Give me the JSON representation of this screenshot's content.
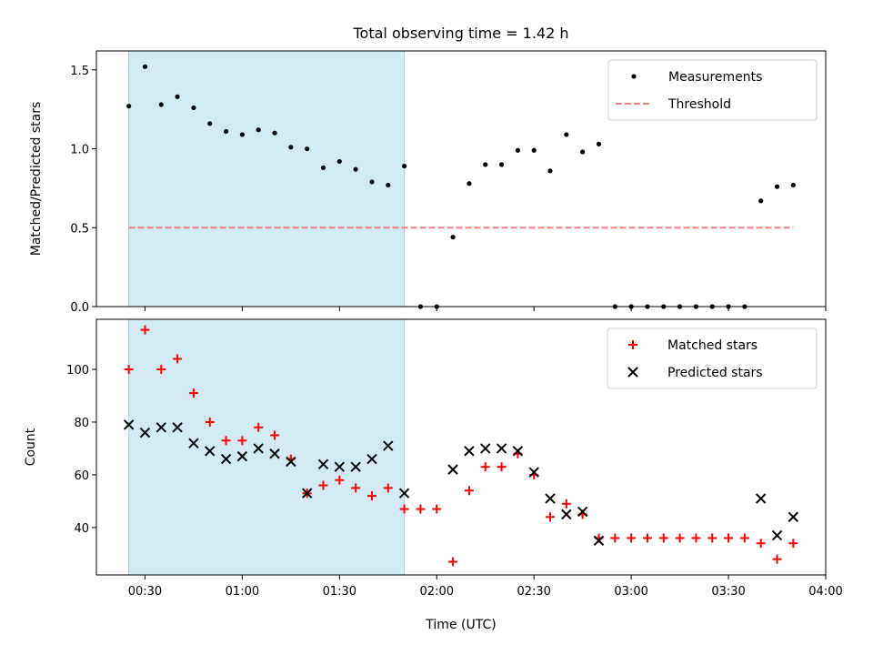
{
  "chart_data": [
    {
      "type": "scatter",
      "title": "Total observing time = 1.42 h",
      "xlabel": "",
      "ylabel": "Matched/Predicted stars",
      "ylim": [
        0,
        1.62
      ],
      "yticks": [
        "0.0",
        "0.5",
        "1.0",
        "1.5"
      ],
      "shaded_region": {
        "x_start": "00:25",
        "x_end": "01:50",
        "color": "#add8e6"
      },
      "legend_position": "top-right",
      "series": [
        {
          "name": "Measurements",
          "marker": "dot",
          "color": "#000000",
          "x": [
            "00:25",
            "00:30",
            "00:35",
            "00:40",
            "00:45",
            "00:50",
            "00:55",
            "01:00",
            "01:05",
            "01:10",
            "01:15",
            "01:20",
            "01:25",
            "01:30",
            "01:35",
            "01:40",
            "01:45",
            "01:50",
            "01:55",
            "02:00",
            "02:05",
            "02:10",
            "02:15",
            "02:20",
            "02:25",
            "02:30",
            "02:35",
            "02:40",
            "02:45",
            "02:50",
            "02:55",
            "03:00",
            "03:05",
            "03:10",
            "03:15",
            "03:20",
            "03:25",
            "03:30",
            "03:35",
            "03:40",
            "03:45",
            "03:50"
          ],
          "y": [
            1.27,
            1.52,
            1.28,
            1.33,
            1.26,
            1.16,
            1.11,
            1.09,
            1.12,
            1.1,
            1.01,
            1.0,
            0.88,
            0.92,
            0.87,
            0.79,
            0.77,
            0.89,
            0.0,
            0.0,
            0.44,
            0.78,
            0.9,
            0.9,
            0.99,
            0.99,
            0.86,
            1.09,
            0.98,
            1.03,
            0.0,
            0.0,
            0.0,
            0.0,
            0.0,
            0.0,
            0.0,
            0.0,
            0.0,
            0.67,
            0.76,
            0.77
          ]
        },
        {
          "name": "Threshold",
          "line": "dashed",
          "color": "#f08080",
          "x": [
            "00:25",
            "03:50"
          ],
          "y": [
            0.5,
            0.5
          ]
        }
      ]
    },
    {
      "type": "scatter",
      "title": "",
      "xlabel": "Time (UTC)",
      "ylabel": "Count",
      "ylim": [
        22,
        119
      ],
      "yticks": [
        "40",
        "60",
        "80",
        "100"
      ],
      "xticks": [
        "00:30",
        "01:00",
        "01:30",
        "02:00",
        "02:30",
        "03:00",
        "03:30",
        "04:00"
      ],
      "xlim": [
        "00:15",
        "04:00"
      ],
      "shaded_region": {
        "x_start": "00:25",
        "x_end": "01:50",
        "color": "#add8e6"
      },
      "legend_position": "top-right",
      "series": [
        {
          "name": "Matched stars",
          "marker": "plus",
          "color": "#ff0000",
          "x": [
            "00:25",
            "00:30",
            "00:35",
            "00:40",
            "00:45",
            "00:50",
            "00:55",
            "01:00",
            "01:05",
            "01:10",
            "01:15",
            "01:20",
            "01:25",
            "01:30",
            "01:35",
            "01:40",
            "01:45",
            "01:50",
            "01:55",
            "02:00",
            "02:05",
            "02:10",
            "02:15",
            "02:20",
            "02:25",
            "02:30",
            "02:35",
            "02:40",
            "02:45",
            "02:50",
            "02:55",
            "03:00",
            "03:05",
            "03:10",
            "03:15",
            "03:20",
            "03:25",
            "03:30",
            "03:35",
            "03:40",
            "03:45",
            "03:50"
          ],
          "y": [
            100,
            115,
            100,
            104,
            91,
            80,
            73,
            73,
            78,
            75,
            66,
            53,
            56,
            58,
            55,
            52,
            55,
            47,
            47,
            47,
            27,
            54,
            63,
            63,
            68,
            60,
            44,
            49,
            45,
            36,
            36,
            36,
            36,
            36,
            36,
            36,
            36,
            36,
            36,
            34,
            28,
            34
          ]
        },
        {
          "name": "Predicted stars",
          "marker": "x",
          "color": "#000000",
          "x": [
            "00:25",
            "00:30",
            "00:35",
            "00:40",
            "00:45",
            "00:50",
            "00:55",
            "01:00",
            "01:05",
            "01:10",
            "01:15",
            "01:20",
            "01:25",
            "01:30",
            "01:35",
            "01:40",
            "01:45",
            "01:50",
            "02:05",
            "02:10",
            "02:15",
            "02:20",
            "02:25",
            "02:30",
            "02:35",
            "02:40",
            "02:45",
            "02:50",
            "03:40",
            "03:45",
            "03:50"
          ],
          "y": [
            79,
            76,
            78,
            78,
            72,
            69,
            66,
            67,
            70,
            68,
            65,
            53,
            64,
            63,
            63,
            66,
            71,
            53,
            62,
            69,
            70,
            70,
            69,
            61,
            51,
            45,
            46,
            35,
            51,
            37,
            44
          ]
        }
      ]
    }
  ]
}
